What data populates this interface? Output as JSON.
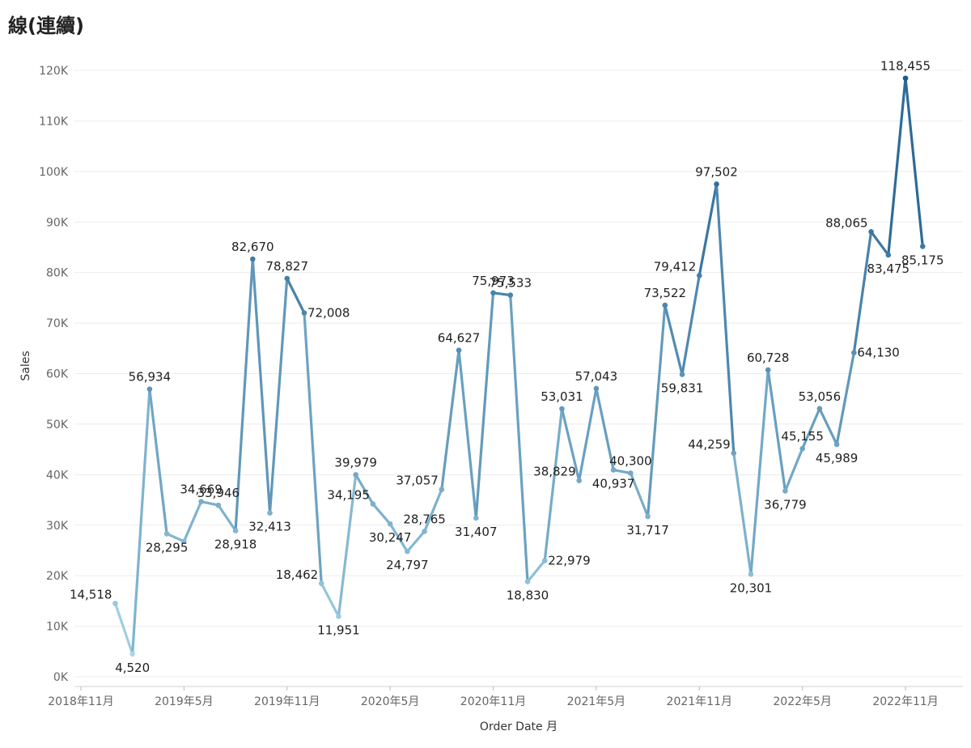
{
  "title": "線(連續)",
  "chart_data": {
    "type": "line",
    "title": "線(連續)",
    "xlabel": "Order Date 月",
    "ylabel": "Sales",
    "ylim": [
      0,
      120000
    ],
    "y_ticks": [
      0,
      10000,
      20000,
      30000,
      40000,
      50000,
      60000,
      70000,
      80000,
      90000,
      100000,
      110000,
      120000
    ],
    "y_tick_labels": [
      "0K",
      "10K",
      "20K",
      "30K",
      "40K",
      "50K",
      "60K",
      "70K",
      "80K",
      "90K",
      "100K",
      "110K",
      "120K"
    ],
    "x_tick_labels": [
      {
        "month": "2018-11",
        "label": "2018年11月"
      },
      {
        "month": "2019-05",
        "label": "2019年5月"
      },
      {
        "month": "2019-11",
        "label": "2019年11月"
      },
      {
        "month": "2020-05",
        "label": "2020年5月"
      },
      {
        "month": "2020-11",
        "label": "2020年11月"
      },
      {
        "month": "2021-05",
        "label": "2021年5月"
      },
      {
        "month": "2021-11",
        "label": "2021年11月"
      },
      {
        "month": "2022-05",
        "label": "2022年5月"
      },
      {
        "month": "2022-11",
        "label": "2022年11月"
      }
    ],
    "grid": true,
    "color_scale": [
      "#a8d7ea",
      "#1a5a8c"
    ],
    "x": [
      "2019-01",
      "2019-02",
      "2019-03",
      "2019-04",
      "2019-05",
      "2019-06",
      "2019-07",
      "2019-08",
      "2019-09",
      "2019-10",
      "2019-11",
      "2019-12",
      "2020-01",
      "2020-02",
      "2020-03",
      "2020-04",
      "2020-05",
      "2020-06",
      "2020-07",
      "2020-08",
      "2020-09",
      "2020-10",
      "2020-11",
      "2020-12",
      "2021-01",
      "2021-02",
      "2021-03",
      "2021-04",
      "2021-05",
      "2021-06",
      "2021-07",
      "2021-08",
      "2021-09",
      "2021-10",
      "2021-11",
      "2021-12",
      "2022-01",
      "2022-02",
      "2022-03",
      "2022-04",
      "2022-05",
      "2022-06",
      "2022-07",
      "2022-08",
      "2022-09",
      "2022-10",
      "2022-11",
      "2022-12"
    ],
    "values": [
      14518,
      4520,
      56934,
      28295,
      26800,
      34669,
      33946,
      28918,
      82670,
      32413,
      78827,
      72008,
      18462,
      11951,
      39979,
      34195,
      30247,
      24797,
      28765,
      37057,
      64627,
      31407,
      75973,
      75533,
      18830,
      22979,
      53031,
      38829,
      57043,
      40937,
      40300,
      31717,
      73522,
      59831,
      79412,
      97502,
      44259,
      20301,
      60728,
      36779,
      45155,
      53056,
      45989,
      64130,
      88065,
      83475,
      118455,
      85175
    ],
    "labels": [
      "14,518",
      "4,520",
      "56,934",
      "28,295",
      "",
      "34,669",
      "33,946",
      "28,918",
      "82,670",
      "32,413",
      "78,827",
      "72,008",
      "18,462",
      "11,951",
      "39,979",
      "34,195",
      "30,247",
      "24,797",
      "28,765",
      "37,057",
      "64,627",
      "31,407",
      "75,973",
      "75,533",
      "18,830",
      "22,979",
      "53,031",
      "38,829",
      "57,043",
      "40,937",
      "40,300",
      "31,717",
      "73,522",
      "59,831",
      "79,412",
      "97,502",
      "44,259",
      "20,301",
      "60,728",
      "36,779",
      "45,155",
      "53,056",
      "45,989",
      "64,130",
      "88,065",
      "83,475",
      "118,455",
      "85,175"
    ]
  }
}
